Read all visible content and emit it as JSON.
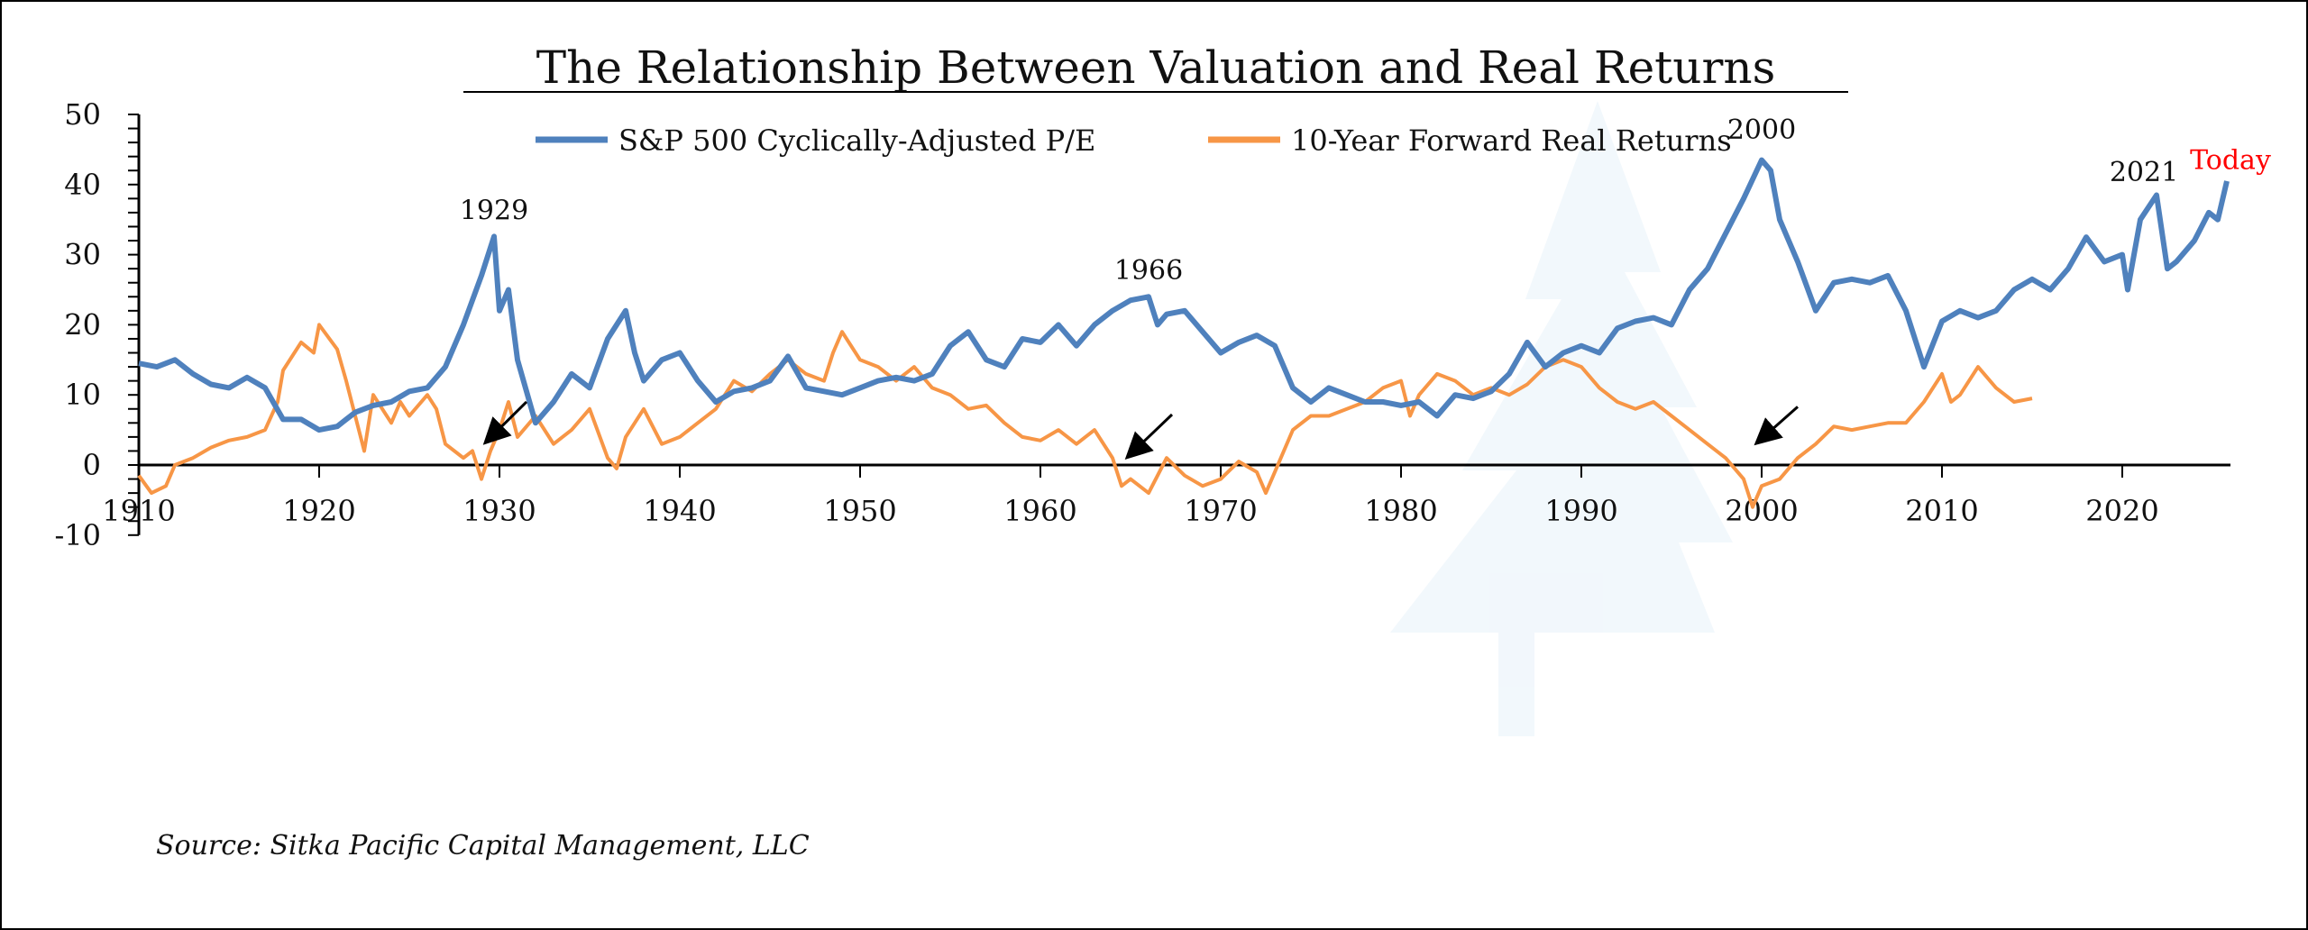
{
  "chart_data": {
    "type": "line",
    "title": "The Relationship Between Valuation and Real Returns",
    "source": "Source: Sitka Pacific Capital Management, LLC",
    "xlim": [
      1910,
      2026
    ],
    "ylim": [
      -10,
      50
    ],
    "x_ticks": [
      "1910",
      "1920",
      "1930",
      "1940",
      "1950",
      "1960",
      "1970",
      "1980",
      "1990",
      "2000",
      "2010",
      "2020"
    ],
    "y_ticks": [
      "-10",
      "0",
      "10",
      "20",
      "30",
      "40",
      "50"
    ],
    "legend": "top-center",
    "grid": false,
    "colors": {
      "cape": "#4f81bd",
      "returns": "#f79646",
      "today": "#ff0000"
    },
    "series": [
      {
        "name": "S&P 500 Cyclically-Adjusted P/E",
        "points": [
          [
            1910,
            14.5
          ],
          [
            1911,
            14
          ],
          [
            1912,
            15
          ],
          [
            1913,
            13
          ],
          [
            1914,
            11.5
          ],
          [
            1915,
            11
          ],
          [
            1916,
            12.5
          ],
          [
            1917,
            11
          ],
          [
            1918,
            6.5
          ],
          [
            1919,
            6.5
          ],
          [
            1920,
            5
          ],
          [
            1921,
            5.5
          ],
          [
            1922,
            7.5
          ],
          [
            1923,
            8.5
          ],
          [
            1924,
            9
          ],
          [
            1925,
            10.5
          ],
          [
            1926,
            11
          ],
          [
            1927,
            14
          ],
          [
            1928,
            20
          ],
          [
            1929,
            27
          ],
          [
            1929.7,
            32.6
          ],
          [
            1930,
            22
          ],
          [
            1930.5,
            25
          ],
          [
            1931,
            15
          ],
          [
            1932,
            6
          ],
          [
            1933,
            9
          ],
          [
            1934,
            13
          ],
          [
            1935,
            11
          ],
          [
            1936,
            18
          ],
          [
            1937,
            22
          ],
          [
            1937.5,
            16
          ],
          [
            1938,
            12
          ],
          [
            1939,
            15
          ],
          [
            1940,
            16
          ],
          [
            1941,
            12
          ],
          [
            1942,
            9
          ],
          [
            1943,
            10.5
          ],
          [
            1944,
            11
          ],
          [
            1945,
            12
          ],
          [
            1946,
            15.5
          ],
          [
            1947,
            11
          ],
          [
            1948,
            10.5
          ],
          [
            1949,
            10
          ],
          [
            1950,
            11
          ],
          [
            1951,
            12
          ],
          [
            1952,
            12.5
          ],
          [
            1953,
            12
          ],
          [
            1954,
            13
          ],
          [
            1955,
            17
          ],
          [
            1956,
            19
          ],
          [
            1957,
            15
          ],
          [
            1958,
            14
          ],
          [
            1959,
            18
          ],
          [
            1960,
            17.5
          ],
          [
            1961,
            20
          ],
          [
            1962,
            17
          ],
          [
            1963,
            20
          ],
          [
            1964,
            22
          ],
          [
            1965,
            23.5
          ],
          [
            1966,
            24
          ],
          [
            1966.5,
            20
          ],
          [
            1967,
            21.5
          ],
          [
            1968,
            22
          ],
          [
            1969,
            19
          ],
          [
            1970,
            16
          ],
          [
            1971,
            17.5
          ],
          [
            1972,
            18.5
          ],
          [
            1973,
            17
          ],
          [
            1974,
            11
          ],
          [
            1975,
            9
          ],
          [
            1976,
            11
          ],
          [
            1977,
            10
          ],
          [
            1978,
            9
          ],
          [
            1979,
            9
          ],
          [
            1980,
            8.5
          ],
          [
            1981,
            9
          ],
          [
            1982,
            7
          ],
          [
            1983,
            10
          ],
          [
            1984,
            9.5
          ],
          [
            1985,
            10.5
          ],
          [
            1986,
            13
          ],
          [
            1987,
            17.5
          ],
          [
            1988,
            14
          ],
          [
            1989,
            16
          ],
          [
            1990,
            17
          ],
          [
            1991,
            16
          ],
          [
            1992,
            19.5
          ],
          [
            1993,
            20.5
          ],
          [
            1994,
            21
          ],
          [
            1995,
            20
          ],
          [
            1996,
            25
          ],
          [
            1997,
            28
          ],
          [
            1998,
            33
          ],
          [
            1999,
            38
          ],
          [
            2000,
            43.5
          ],
          [
            2000.5,
            42
          ],
          [
            2001,
            35
          ],
          [
            2002,
            29
          ],
          [
            2003,
            22
          ],
          [
            2004,
            26
          ],
          [
            2005,
            26.5
          ],
          [
            2006,
            26
          ],
          [
            2007,
            27
          ],
          [
            2008,
            22
          ],
          [
            2009,
            14
          ],
          [
            2010,
            20.5
          ],
          [
            2011,
            22
          ],
          [
            2012,
            21
          ],
          [
            2013,
            22
          ],
          [
            2014,
            25
          ],
          [
            2015,
            26.5
          ],
          [
            2016,
            25
          ],
          [
            2017,
            28
          ],
          [
            2018,
            32.5
          ],
          [
            2019,
            29
          ],
          [
            2020,
            30
          ],
          [
            2020.3,
            25
          ],
          [
            2021,
            35
          ],
          [
            2021.9,
            38.5
          ],
          [
            2022.5,
            28
          ],
          [
            2023,
            29
          ],
          [
            2024,
            32
          ],
          [
            2024.8,
            36
          ],
          [
            2025.3,
            35
          ],
          [
            2025.8,
            40.5
          ]
        ]
      },
      {
        "name": "10-Year Forward Real Returns",
        "points": [
          [
            1910,
            -1.5
          ],
          [
            1910.7,
            -4
          ],
          [
            1911.5,
            -3
          ],
          [
            1912,
            0
          ],
          [
            1913,
            1
          ],
          [
            1914,
            2.5
          ],
          [
            1915,
            3.5
          ],
          [
            1916,
            4
          ],
          [
            1917,
            5
          ],
          [
            1917.7,
            9
          ],
          [
            1918,
            13.5
          ],
          [
            1919,
            17.5
          ],
          [
            1919.7,
            16
          ],
          [
            1920,
            20
          ],
          [
            1921,
            16.5
          ],
          [
            1921.5,
            12
          ],
          [
            1922,
            7
          ],
          [
            1922.5,
            2
          ],
          [
            1923,
            10
          ],
          [
            1924,
            6
          ],
          [
            1924.5,
            9
          ],
          [
            1925,
            7
          ],
          [
            1926,
            10
          ],
          [
            1926.5,
            8
          ],
          [
            1927,
            3
          ],
          [
            1928,
            1
          ],
          [
            1928.5,
            2
          ],
          [
            1929,
            -2
          ],
          [
            1929.5,
            2
          ],
          [
            1930,
            5
          ],
          [
            1930.5,
            9
          ],
          [
            1931,
            4
          ],
          [
            1932,
            7
          ],
          [
            1933,
            3
          ],
          [
            1934,
            5
          ],
          [
            1935,
            8
          ],
          [
            1936,
            1
          ],
          [
            1936.5,
            -0.5
          ],
          [
            1937,
            4
          ],
          [
            1938,
            8
          ],
          [
            1939,
            3
          ],
          [
            1940,
            4
          ],
          [
            1941,
            6
          ],
          [
            1942,
            8
          ],
          [
            1943,
            12
          ],
          [
            1944,
            10.5
          ],
          [
            1945,
            13
          ],
          [
            1946,
            15
          ],
          [
            1947,
            13
          ],
          [
            1948,
            12
          ],
          [
            1948.5,
            16
          ],
          [
            1949,
            19
          ],
          [
            1950,
            15
          ],
          [
            1951,
            14
          ],
          [
            1952,
            12
          ],
          [
            1953,
            14
          ],
          [
            1954,
            11
          ],
          [
            1955,
            10
          ],
          [
            1956,
            8
          ],
          [
            1957,
            8.5
          ],
          [
            1958,
            6
          ],
          [
            1959,
            4
          ],
          [
            1960,
            3.5
          ],
          [
            1961,
            5
          ],
          [
            1962,
            3
          ],
          [
            1963,
            5
          ],
          [
            1964,
            1
          ],
          [
            1964.5,
            -3
          ],
          [
            1965,
            -2
          ],
          [
            1966,
            -4
          ],
          [
            1967,
            1
          ],
          [
            1968,
            -1.5
          ],
          [
            1969,
            -3
          ],
          [
            1970,
            -2
          ],
          [
            1971,
            0.5
          ],
          [
            1972,
            -1
          ],
          [
            1972.5,
            -4
          ],
          [
            1973,
            -1
          ],
          [
            1974,
            5
          ],
          [
            1975,
            7
          ],
          [
            1976,
            7
          ],
          [
            1977,
            8
          ],
          [
            1978,
            9
          ],
          [
            1979,
            11
          ],
          [
            1980,
            12
          ],
          [
            1980.5,
            7
          ],
          [
            1981,
            10
          ],
          [
            1982,
            13
          ],
          [
            1983,
            12
          ],
          [
            1984,
            10
          ],
          [
            1985,
            11
          ],
          [
            1986,
            10
          ],
          [
            1987,
            11.5
          ],
          [
            1988,
            14
          ],
          [
            1989,
            15
          ],
          [
            1990,
            14
          ],
          [
            1991,
            11
          ],
          [
            1992,
            9
          ],
          [
            1993,
            8
          ],
          [
            1994,
            9
          ],
          [
            1995,
            7
          ],
          [
            1996,
            5
          ],
          [
            1997,
            3
          ],
          [
            1998,
            1
          ],
          [
            1999,
            -2
          ],
          [
            1999.5,
            -6
          ],
          [
            2000,
            -3
          ],
          [
            2001,
            -2
          ],
          [
            2002,
            1
          ],
          [
            2003,
            3
          ],
          [
            2004,
            5.5
          ],
          [
            2005,
            5
          ],
          [
            2006,
            5.5
          ],
          [
            2007,
            6
          ],
          [
            2008,
            6
          ],
          [
            2009,
            9
          ],
          [
            2010,
            13
          ],
          [
            2010.5,
            9
          ],
          [
            2011,
            10
          ],
          [
            2012,
            14
          ],
          [
            2013,
            11
          ],
          [
            2014,
            9
          ],
          [
            2015,
            9.5
          ]
        ]
      }
    ],
    "annotations": [
      {
        "text": "1929",
        "x": 1929.7,
        "y": 35
      },
      {
        "text": "1966",
        "x": 1966,
        "y": 26.5
      },
      {
        "text": "2000",
        "x": 2000,
        "y": 46.5
      },
      {
        "text": "2021",
        "x": 2021.2,
        "y": 40.5
      },
      {
        "text": "Today",
        "x": 2026,
        "y": 42.2,
        "color": "#ff0000"
      }
    ],
    "arrows": [
      {
        "from": [
          1931.5,
          9
        ],
        "to": [
          1929.3,
          3.4
        ]
      },
      {
        "from": [
          1967.3,
          7.2
        ],
        "to": [
          1964.9,
          1.3
        ]
      },
      {
        "from": [
          2002,
          8.3
        ],
        "to": [
          1999.8,
          3.3
        ]
      }
    ]
  }
}
